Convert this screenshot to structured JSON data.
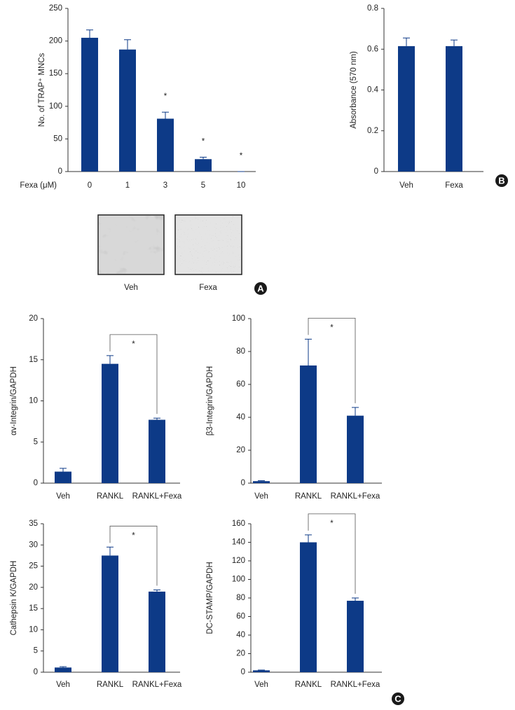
{
  "chart_data": [
    {
      "type": "bar",
      "y_label": "No. of TRAP⁺ MNCs",
      "x_label": "Fexa (μM)",
      "categories": [
        "0",
        "1",
        "3",
        "5",
        "10"
      ],
      "values": [
        205,
        187,
        81,
        19,
        0
      ],
      "errors": [
        12,
        15,
        10,
        3,
        0
      ],
      "value_annotations": [
        null,
        null,
        "*",
        "*",
        "*"
      ],
      "color": "#0d3a87",
      "ylim": [
        0,
        250
      ],
      "yticks": [
        0,
        50,
        100,
        150,
        200,
        250
      ]
    },
    {
      "type": "bar",
      "y_label": "Absorbance (570 nm)",
      "categories": [
        "Veh",
        "Fexa"
      ],
      "values": [
        0.615,
        0.615
      ],
      "errors": [
        0.04,
        0.03
      ],
      "color": "#0d3a87",
      "ylim": [
        0,
        0.8
      ],
      "yticks": [
        0,
        0.2,
        0.4,
        0.6,
        0.8
      ]
    },
    {
      "type": "bar",
      "y_label": "αv-Integrin/GAPDH",
      "categories": [
        "Veh",
        "RANKL",
        "RANKL+Fexa"
      ],
      "values": [
        1.4,
        14.5,
        7.7
      ],
      "errors": [
        0.4,
        1.0,
        0.2
      ],
      "comparison_labels": [
        null,
        null,
        "*"
      ],
      "color": "#0d3a87",
      "ylim": [
        0,
        20
      ],
      "yticks": [
        0,
        5,
        10,
        15,
        20
      ]
    },
    {
      "type": "bar",
      "y_label": "β3-Integrin/GAPDH",
      "categories": [
        "Veh",
        "RANKL",
        "RANKL+Fexa"
      ],
      "values": [
        1.2,
        71.5,
        41
      ],
      "errors": [
        0.3,
        16,
        5
      ],
      "comparison_labels": [
        null,
        null,
        "*"
      ],
      "color": "#0d3a87",
      "ylim": [
        0,
        100
      ],
      "yticks": [
        0,
        20,
        40,
        60,
        80,
        100
      ]
    },
    {
      "type": "bar",
      "y_label": "Cathepsin K/GAPDH",
      "categories": [
        "Veh",
        "RANKL",
        "RANKL+Fexa"
      ],
      "values": [
        1.1,
        27.5,
        19
      ],
      "errors": [
        0.2,
        2,
        0.4
      ],
      "comparison_labels": [
        null,
        null,
        "*"
      ],
      "color": "#0d3a87",
      "ylim": [
        0,
        35
      ],
      "yticks": [
        0,
        5,
        10,
        15,
        20,
        25,
        30,
        35
      ]
    },
    {
      "type": "bar",
      "y_label": "DC-STAMP/GAPDH",
      "categories": [
        "Veh",
        "RANKL",
        "RANKL+Fexa"
      ],
      "values": [
        2,
        140,
        77
      ],
      "errors": [
        0.3,
        8,
        3
      ],
      "comparison_labels": [
        null,
        null,
        "*"
      ],
      "color": "#0d3a87",
      "ylim": [
        0,
        160
      ],
      "yticks": [
        0,
        20,
        40,
        60,
        80,
        100,
        120,
        140,
        160
      ]
    }
  ],
  "images": {
    "labels": [
      "Veh",
      "Fexa"
    ]
  },
  "panel_labels": [
    "A",
    "B",
    "C"
  ]
}
